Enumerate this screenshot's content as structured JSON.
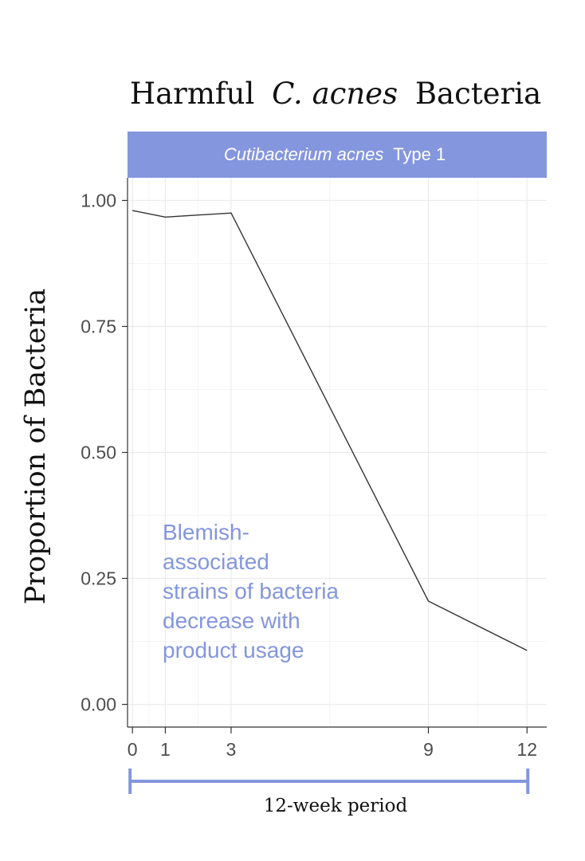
{
  "colors": {
    "accent": "#8496de",
    "line": "#333333",
    "grid_major": "#ebebeb",
    "grid_minor": "#f4f4f4",
    "axis_text": "#4d4d4d"
  },
  "chart_data": {
    "type": "line",
    "title": {
      "prefix": "Harmful",
      "italic": "C. acnes",
      "suffix": "Bacteria"
    },
    "strip": {
      "italic": "Cutibacterium acnes",
      "rest": "Type 1"
    },
    "ylabel": "Proportion of Bacteria",
    "xlabel": "12-week period",
    "x": [
      0,
      1,
      3,
      9,
      12
    ],
    "y": [
      0.98,
      0.967,
      0.975,
      0.205,
      0.107
    ],
    "xlim": [
      -0.15,
      12.6
    ],
    "ylim": [
      -0.045,
      1.045
    ],
    "x_ticks": [
      0,
      1,
      3,
      9,
      12
    ],
    "y_ticks": [
      0.0,
      0.25,
      0.5,
      0.75,
      1.0
    ],
    "y_tick_labels": [
      "0.00",
      "0.25",
      "0.50",
      "0.75",
      "1.00"
    ],
    "grid": true,
    "annotation": {
      "lines": [
        "Blemish-",
        "associated",
        "strains of bacteria",
        "decrease with",
        "product usage"
      ]
    }
  }
}
